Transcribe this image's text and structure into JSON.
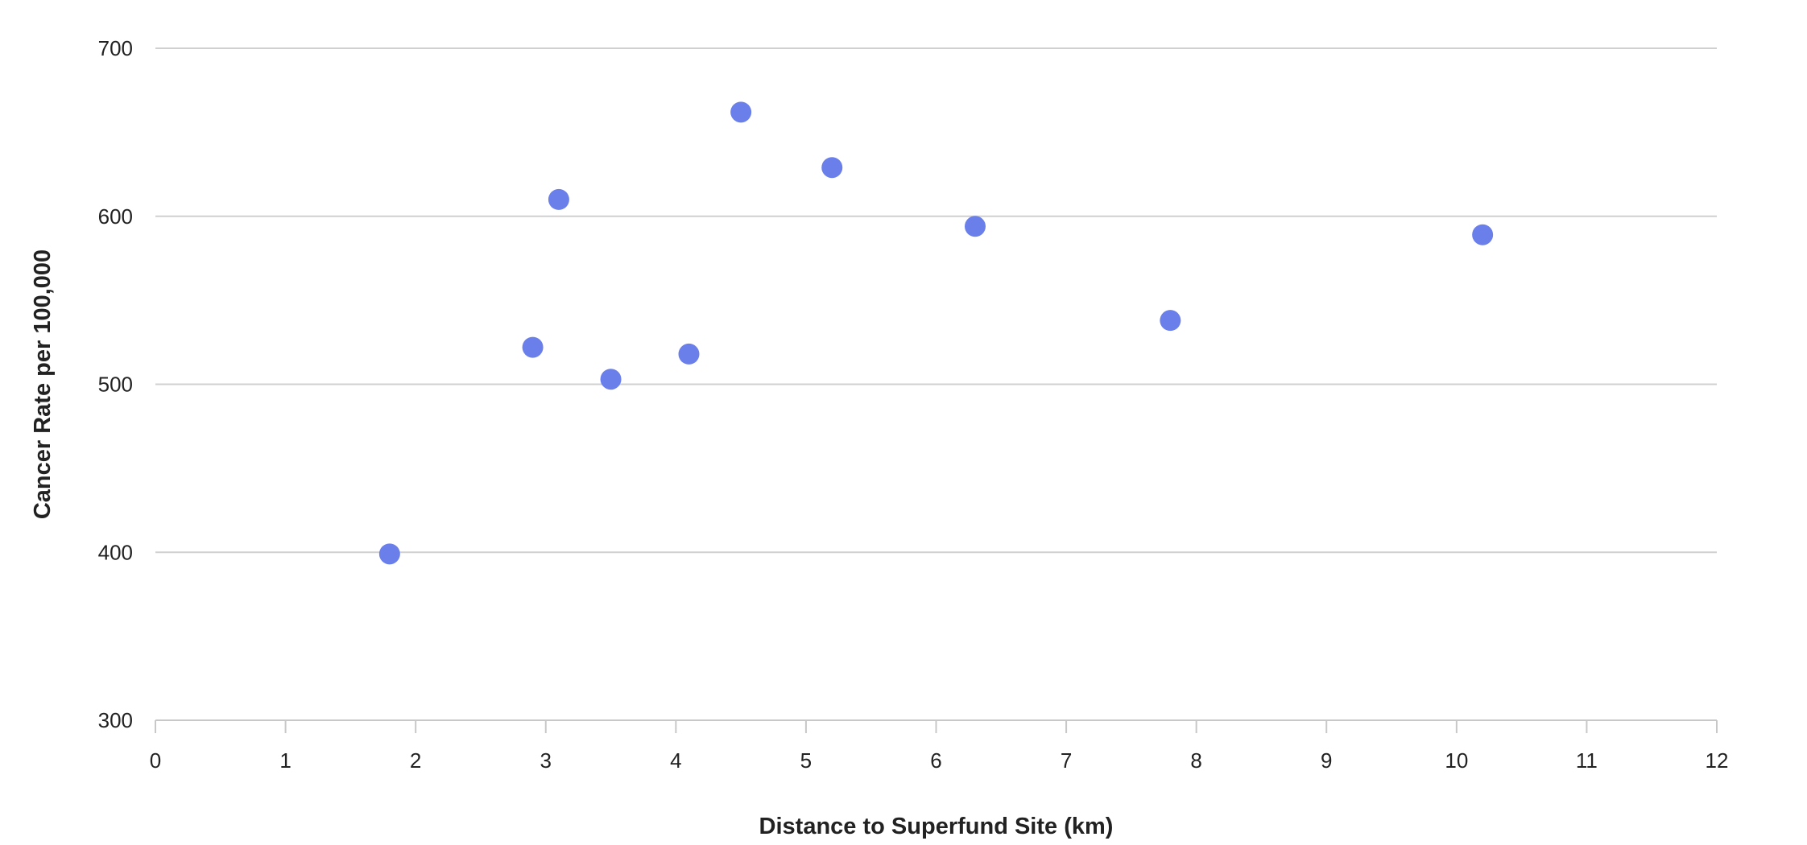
{
  "chart_data": {
    "type": "scatter",
    "title": "",
    "xlabel": "Distance to Superfund Site (km)",
    "ylabel": "Cancer Rate per 100,000",
    "xlim": [
      0,
      12
    ],
    "ylim": [
      300,
      700
    ],
    "x_ticks": [
      0,
      1,
      2,
      3,
      4,
      5,
      6,
      7,
      8,
      9,
      10,
      11,
      12
    ],
    "y_ticks": [
      300,
      400,
      500,
      600,
      700
    ],
    "grid": "horizontal",
    "legend": "none",
    "point_color": "#6a7fe9",
    "series": [
      {
        "points": [
          {
            "x": 1.8,
            "y": 399
          },
          {
            "x": 2.9,
            "y": 522
          },
          {
            "x": 3.1,
            "y": 610
          },
          {
            "x": 3.5,
            "y": 503
          },
          {
            "x": 4.1,
            "y": 518
          },
          {
            "x": 4.5,
            "y": 662
          },
          {
            "x": 5.2,
            "y": 629
          },
          {
            "x": 6.3,
            "y": 594
          },
          {
            "x": 7.8,
            "y": 538
          },
          {
            "x": 10.2,
            "y": 589
          }
        ]
      }
    ]
  }
}
